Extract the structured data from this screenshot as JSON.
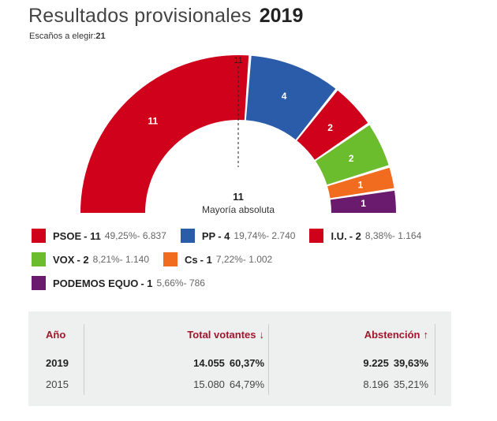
{
  "header": {
    "title": "Resultados provisionales",
    "year": "2019",
    "seats_label": "Escaños a elegir:",
    "seats_total": "21"
  },
  "majority": {
    "value": "11",
    "label": "Mayoría absoluta",
    "marker": "11"
  },
  "chart_data": {
    "type": "parliament",
    "total_seats": 21,
    "parties": [
      {
        "name": "PSOE",
        "seats": 11,
        "color": "#d0021b"
      },
      {
        "name": "PP",
        "seats": 4,
        "color": "#2a5caa"
      },
      {
        "name": "I.U.",
        "seats": 2,
        "color": "#d0021b"
      },
      {
        "name": "VOX",
        "seats": 2,
        "color": "#6bbd2e"
      },
      {
        "name": "Cs",
        "seats": 1,
        "color": "#f26c1f"
      },
      {
        "name": "PODEMOS EQUO",
        "seats": 1,
        "color": "#6a1b6e"
      }
    ]
  },
  "legend": [
    {
      "name": "PSOE",
      "seats": "- 11",
      "pct": "49,25%",
      "votes": "- 6.837",
      "color": "#d0021b"
    },
    {
      "name": "PP",
      "seats": "- 4",
      "pct": "19,74%",
      "votes": "- 2.740",
      "color": "#2a5caa"
    },
    {
      "name": "I.U.",
      "seats": "- 2",
      "pct": "8,38%",
      "votes": "- 1.164",
      "color": "#d0021b"
    },
    {
      "name": "VOX",
      "seats": "- 2",
      "pct": "8,21%",
      "votes": "- 1.140",
      "color": "#6bbd2e"
    },
    {
      "name": "Cs",
      "seats": "- 1",
      "pct": "7,22%",
      "votes": "- 1.002",
      "color": "#f26c1f"
    },
    {
      "name": "PODEMOS EQUO",
      "seats": "- 1",
      "pct": "5,66%",
      "votes": "- 786",
      "color": "#6a1b6e"
    }
  ],
  "table": {
    "headers": {
      "year": "Año",
      "votes": "Total votantes",
      "abstention": "Abstención"
    },
    "rows": [
      {
        "year": "2019",
        "votes": "14.055",
        "votes_pct": "60,37%",
        "abs": "9.225",
        "abs_pct": "39,63%"
      },
      {
        "year": "2015",
        "votes": "15.080",
        "votes_pct": "64,79%",
        "abs": "8.196",
        "abs_pct": "35,21%"
      }
    ]
  }
}
